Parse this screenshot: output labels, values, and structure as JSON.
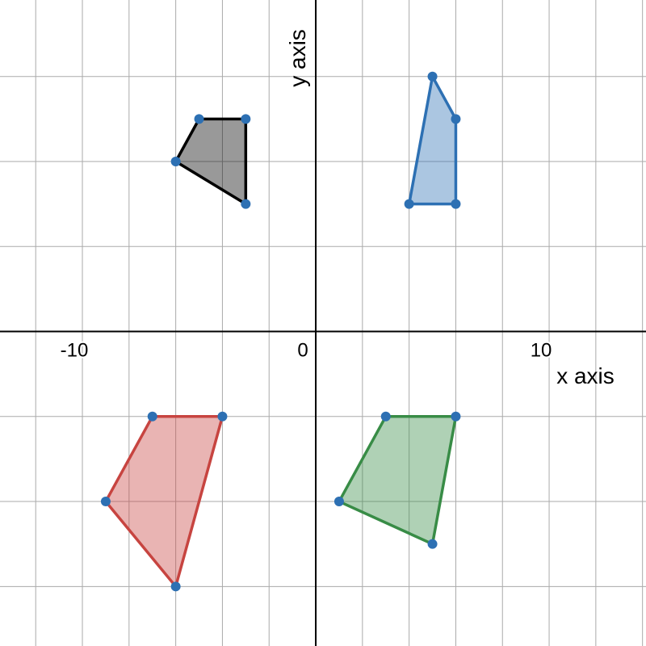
{
  "chart_data": {
    "type": "polygon",
    "xlabel": "x axis",
    "ylabel": "y axis",
    "xlim": [
      -13.53,
      14.15
    ],
    "ylim": [
      -7.4,
      7.8
    ],
    "xticks": [
      -10,
      0,
      10
    ],
    "xgrid": [
      -12,
      -10,
      -8,
      -6,
      -4,
      -2,
      0,
      2,
      4,
      6,
      8,
      10,
      12,
      14
    ],
    "ygrid": [
      -6,
      -4,
      -2,
      0,
      2,
      4,
      6
    ],
    "point_color": "#2d70b3",
    "series": [
      {
        "color": "#000000",
        "x": [
          -5,
          -3,
          -3,
          -6
        ],
        "y": [
          5,
          5,
          3,
          4
        ]
      },
      {
        "color": "#2d70b3",
        "x": [
          4,
          6,
          6,
          5
        ],
        "y": [
          3,
          3,
          5,
          6
        ]
      },
      {
        "color": "#c74440",
        "x": [
          -7,
          -4,
          -6,
          -9
        ],
        "y": [
          -2,
          -2,
          -6,
          -4
        ]
      },
      {
        "color": "#388c46",
        "x": [
          3,
          6,
          5,
          1
        ],
        "y": [
          -2,
          -2,
          -5,
          -4
        ]
      }
    ]
  }
}
